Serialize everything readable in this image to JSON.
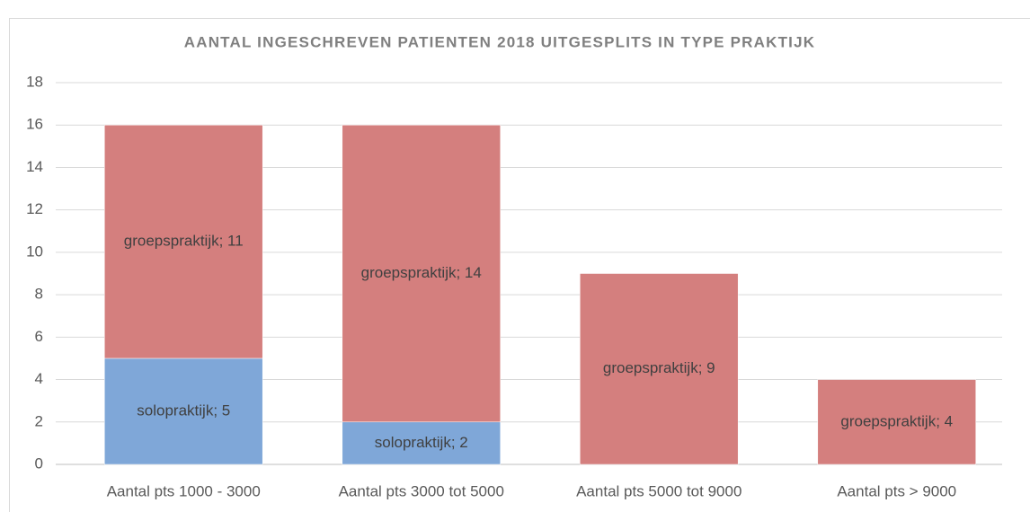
{
  "chart_data": {
    "type": "stacked_bar",
    "title": "AANTAL INGESCHREVEN PATIENTEN 2018 UITGESPLITS IN TYPE PRAKTIJK",
    "categories": [
      "Aantal pts 1000 - 3000",
      "Aantal pts 3000 tot 5000",
      "Aantal pts 5000 tot 9000",
      "Aantal pts > 9000"
    ],
    "series": [
      {
        "name": "solopraktijk",
        "color": "#7fa7d8",
        "values": [
          5,
          2,
          null,
          null
        ],
        "value_labels": [
          "solopraktijk; 5",
          "solopraktijk; 2",
          null,
          null
        ]
      },
      {
        "name": "groepspraktijk",
        "color": "#d47f7e",
        "values": [
          11,
          14,
          9,
          4
        ],
        "value_labels": [
          "groepspraktijk; 11",
          "groepspraktijk; 14",
          "groepspraktijk; 9",
          "groepspraktijk; 4"
        ]
      }
    ],
    "ylim": [
      0,
      18
    ],
    "yticks": [
      0,
      2,
      4,
      6,
      8,
      10,
      12,
      14,
      16,
      18
    ],
    "grid": true
  }
}
